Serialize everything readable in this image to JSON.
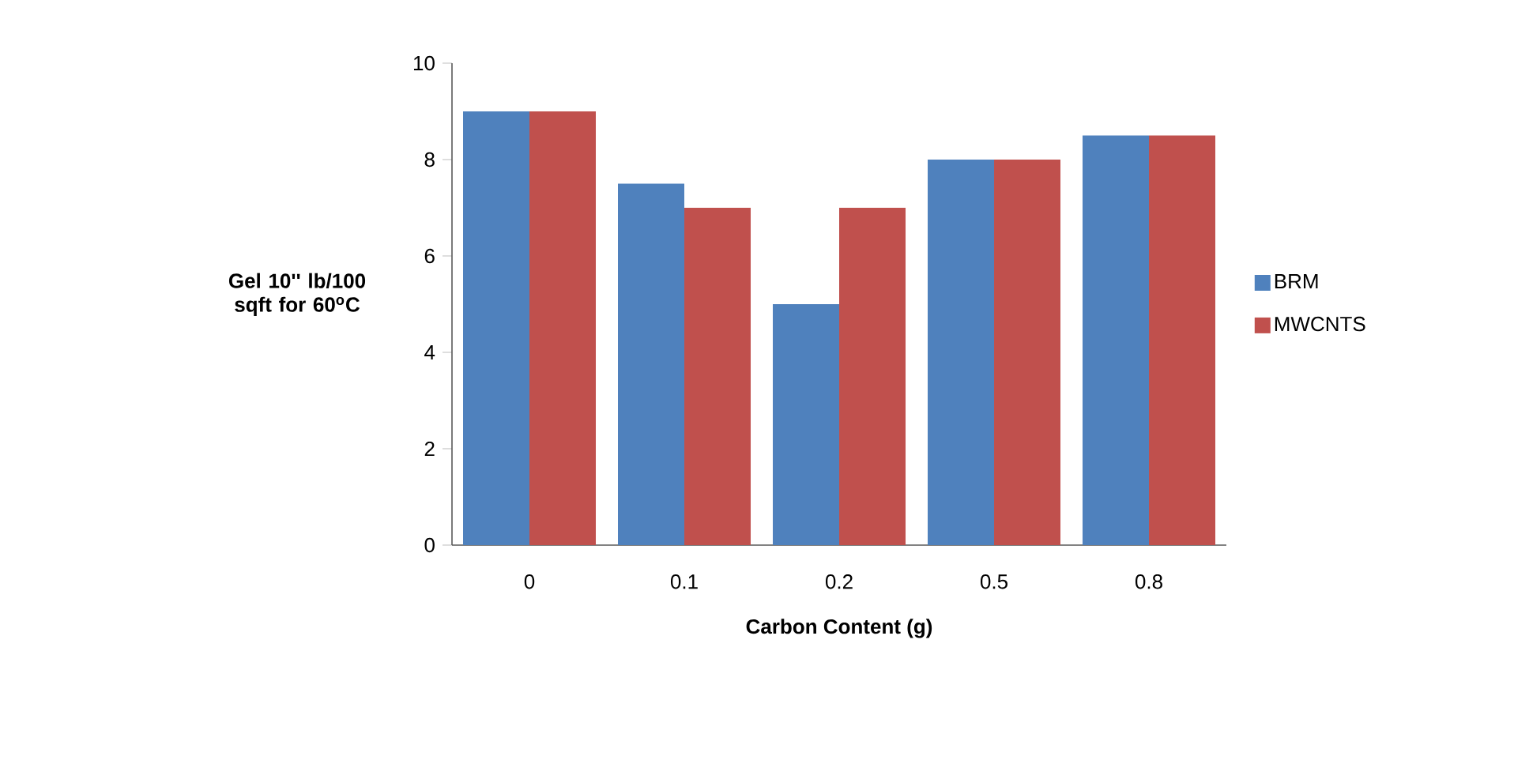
{
  "chart_data": {
    "type": "bar",
    "xlabel": "Carbon Content (g)",
    "ylabel": "Gel 10'' lb/100 sqft for 60$^{o}$C",
    "categories": [
      "0",
      "0.1",
      "0.2",
      "0.5",
      "0.8"
    ],
    "series": [
      {
        "name": "BRM",
        "color": "#4f81bd",
        "values": [
          9,
          7.5,
          5,
          8,
          8.5
        ]
      },
      {
        "name": "MWCNTS",
        "color": "#c0504d",
        "values": [
          9,
          7,
          7,
          8,
          8.5
        ]
      }
    ],
    "ylim": [
      0,
      10
    ],
    "yticks": [
      0,
      2,
      4,
      6,
      8,
      10
    ],
    "grid": false,
    "legend": "right"
  }
}
